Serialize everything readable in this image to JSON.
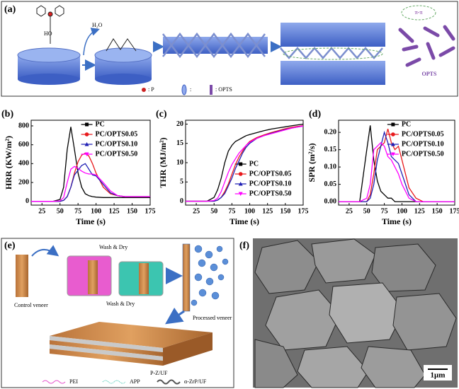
{
  "panel_a": {
    "label": "(a)",
    "hydroxyl": "HO",
    "water": "H₂O",
    "pi_stack": "π-π",
    "product": "OPTS",
    "legend": [
      ": P",
      ":",
      ": OPTS"
    ]
  },
  "chart_data": [
    {
      "type": "line",
      "panel": "(b)",
      "x_label": "Time (s)",
      "y_label": "HRR (KW/m²)",
      "legend": "upper right",
      "x": [
        10,
        20,
        30,
        40,
        50,
        55,
        60,
        65,
        70,
        75,
        80,
        85,
        90,
        95,
        100,
        110,
        120,
        130,
        140,
        150,
        160,
        175
      ],
      "xlim": [
        10,
        175
      ],
      "xticks": [
        25,
        50,
        75,
        100,
        125,
        150,
        175
      ],
      "ylim": [
        -40,
        860
      ],
      "yticks": [
        0,
        200,
        400,
        600,
        800
      ],
      "series": [
        {
          "name": "PC",
          "color": "#000000",
          "values": [
            0,
            0,
            0,
            0,
            20,
            150,
            550,
            790,
            550,
            300,
            150,
            80,
            60,
            50,
            45,
            40,
            40,
            40,
            40,
            40,
            40,
            40
          ]
        },
        {
          "name": "PC/OPTS0.05",
          "color": "#e8191c",
          "values": [
            0,
            0,
            0,
            0,
            0,
            10,
            50,
            150,
            300,
            420,
            490,
            510,
            480,
            400,
            300,
            150,
            80,
            60,
            50,
            50,
            50,
            50
          ]
        },
        {
          "name": "PC/OPTS0.10",
          "color": "#1f1fb4",
          "values": [
            0,
            0,
            0,
            0,
            0,
            10,
            50,
            150,
            280,
            330,
            380,
            400,
            340,
            280,
            270,
            180,
            90,
            60,
            50,
            50,
            50,
            50
          ]
        },
        {
          "name": "PC/OPTS0.50",
          "color": "#ff00ff",
          "values": [
            0,
            0,
            0,
            0,
            5,
            40,
            200,
            340,
            370,
            350,
            320,
            300,
            290,
            290,
            280,
            200,
            110,
            60,
            50,
            50,
            50,
            50
          ]
        }
      ]
    },
    {
      "type": "line",
      "panel": "(c)",
      "x_label": "Time (s)",
      "y_label": "THR (MJ/m²)",
      "legend": "lower right",
      "x": [
        10,
        20,
        30,
        40,
        50,
        55,
        60,
        65,
        70,
        75,
        80,
        85,
        90,
        95,
        100,
        110,
        120,
        130,
        140,
        150,
        160,
        175
      ],
      "xlim": [
        10,
        175
      ],
      "xticks": [
        25,
        50,
        75,
        100,
        125,
        150,
        175
      ],
      "ylim": [
        -1,
        21
      ],
      "yticks": [
        0,
        5,
        10,
        15,
        20
      ],
      "series": [
        {
          "name": "PC",
          "color": "#000000",
          "values": [
            0,
            0,
            0,
            0,
            1,
            3,
            6,
            10,
            13,
            14.5,
            15.5,
            16,
            16.5,
            17,
            17.3,
            17.8,
            18.3,
            18.7,
            19,
            19.3,
            19.6,
            20
          ]
        },
        {
          "name": "PC/OPTS0.05",
          "color": "#e8191c",
          "values": [
            0,
            0,
            0,
            0,
            0,
            0.3,
            1,
            2.5,
            4.5,
            7,
            9.5,
            11.5,
            13,
            14.5,
            15.5,
            16.5,
            17.2,
            17.8,
            18.3,
            18.8,
            19.2,
            19.6
          ]
        },
        {
          "name": "PC/OPTS0.10",
          "color": "#1f1fb4",
          "values": [
            0,
            0,
            0,
            0,
            0,
            0.3,
            1,
            2,
            4,
            6,
            8.5,
            10.5,
            12.5,
            14,
            15,
            16.3,
            17,
            17.6,
            18.1,
            18.6,
            19,
            19.5
          ]
        },
        {
          "name": "PC/OPTS0.50",
          "color": "#ff00ff",
          "values": [
            0,
            0,
            0,
            0,
            0.2,
            0.8,
            2.5,
            5,
            7.5,
            9.5,
            11,
            12.5,
            13.5,
            14.5,
            15.3,
            16.3,
            17,
            17.5,
            18,
            18.5,
            19,
            19.5
          ]
        }
      ]
    },
    {
      "type": "line",
      "panel": "(d)",
      "x_label": "Time (s)",
      "y_label": "SPR (m²/s)",
      "legend": "upper right",
      "x": [
        10,
        20,
        30,
        40,
        50,
        55,
        60,
        65,
        70,
        75,
        80,
        85,
        90,
        95,
        100,
        110,
        120,
        130,
        140,
        150,
        160,
        175
      ],
      "xlim": [
        10,
        175
      ],
      "xticks": [
        25,
        50,
        75,
        100,
        125,
        150,
        175
      ],
      "ylim": [
        -0.01,
        0.235
      ],
      "yticks": [
        {
          "value": 0,
          "label": "0.00"
        },
        0.05,
        {
          "value": 0.1,
          "label": "0.10"
        },
        0.15,
        {
          "value": 0.2,
          "label": "0.20"
        }
      ],
      "series": [
        {
          "name": "PC",
          "color": "#000000",
          "values": [
            0,
            0,
            0,
            0,
            0.15,
            0.22,
            0.12,
            0.06,
            0.03,
            0.02,
            0.01,
            0.01,
            0,
            0,
            0,
            0,
            0,
            0,
            0,
            0,
            0,
            0
          ]
        },
        {
          "name": "PC/OPTS0.05",
          "color": "#e8191c",
          "values": [
            0,
            0,
            0,
            0,
            0,
            0.02,
            0.08,
            0.15,
            0.16,
            0.17,
            0.21,
            0.17,
            0.15,
            0.16,
            0.12,
            0.04,
            0.01,
            0,
            0,
            0,
            0,
            0
          ]
        },
        {
          "name": "PC/OPTS0.10",
          "color": "#1f1fb4",
          "values": [
            0,
            0,
            0,
            0,
            0,
            0.01,
            0.05,
            0.12,
            0.16,
            0.2,
            0.17,
            0.13,
            0.12,
            0.11,
            0.08,
            0.02,
            0,
            0,
            0,
            0,
            0,
            0
          ]
        },
        {
          "name": "PC/OPTS0.50",
          "color": "#ff00ff",
          "values": [
            0,
            0,
            0,
            0,
            0.01,
            0.05,
            0.15,
            0.16,
            0.17,
            0.16,
            0.13,
            0.12,
            0.1,
            0.08,
            0.05,
            0.01,
            0,
            0,
            0,
            0,
            0,
            0
          ]
        }
      ]
    }
  ],
  "panel_e": {
    "label": "(e)",
    "wash_dry": [
      "Wash & Dry",
      "Wash & Dry"
    ],
    "control": "Control veneer",
    "processed": "Processed veneer",
    "product": "P-Z/UF",
    "legend": [
      "PEI",
      "APP",
      "α-ZrP/UF"
    ]
  },
  "panel_f": {
    "label": "(f)",
    "scale": "1μm"
  }
}
